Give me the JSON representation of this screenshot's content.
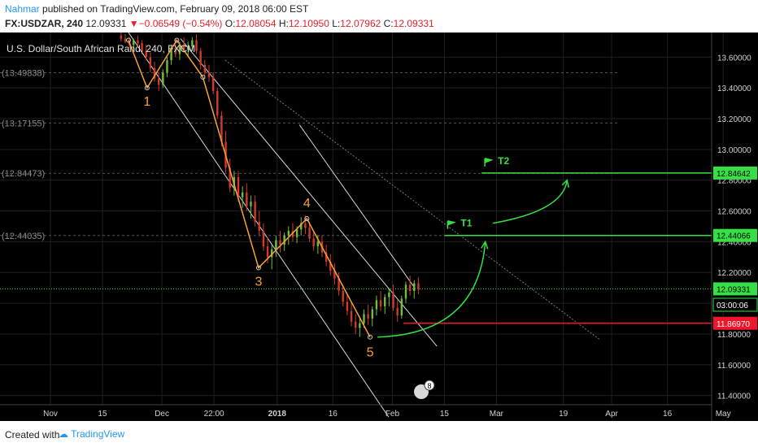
{
  "header": {
    "author": "Nahmar",
    "published_text": " published on TradingView.com, February 09, 2018 06:00 EST",
    "symbol": "FX:USDZAR, 240",
    "last": "12.09331",
    "change": "−0.06549 (−0.54%)",
    "o_label": "O:",
    "o_value": "12.08054",
    "h_label": "H:",
    "h_value": "12.10950",
    "l_label": "L:",
    "l_value": "12.07962",
    "c_label": "C:",
    "c_value": "12.09331"
  },
  "footer": {
    "created_with": "Created with",
    "brand": "TradingView"
  },
  "colors": {
    "background": "#000000",
    "candle_up": "#6fbf3f",
    "candle_down": "#d33a2c",
    "wave": "#f7a13a",
    "target": "#35e045",
    "support": "#f0152a",
    "channel": "#d9d9d9"
  },
  "chart_data": {
    "type": "candlestick",
    "title": "U.S. Dollar/South African Rand, 240, FXCM",
    "xlabel": "",
    "ylabel": "",
    "x_ticks": [
      "Nov",
      "15",
      "Dec",
      "22:00",
      "2018",
      "16",
      "Feb",
      "15",
      "Mar",
      "19",
      "Apr",
      "16",
      "May"
    ],
    "y_ticks": [
      "11.40000",
      "11.60000",
      "11.80000",
      "12.00000",
      "12.20000",
      "12.40000",
      "12.60000",
      "12.80000",
      "13.00000",
      "13.20000",
      "13.40000",
      "13.60000"
    ],
    "ylim": [
      11.34,
      13.76
    ],
    "grid": true,
    "fib_levels": [
      {
        "label": "(13.49838)",
        "value": 13.49838
      },
      {
        "label": "(13.17155)",
        "value": 13.17155
      },
      {
        "label": "(12.84473)",
        "value": 12.84473
      },
      {
        "label": "(12.44035)",
        "value": 12.44035
      }
    ],
    "price_labels": [
      {
        "label": "12.84642",
        "value": 12.84642,
        "color": "#35e045"
      },
      {
        "label": "12.44066",
        "value": 12.44066,
        "color": "#35e045"
      },
      {
        "label": "12.09331",
        "value": 12.09331,
        "color": "#35e045"
      },
      {
        "label": "03:00:06",
        "value": 11.99,
        "color": "#ffffff"
      },
      {
        "label": "11.86970",
        "value": 11.8697,
        "color": "#f0152a"
      }
    ],
    "targets": [
      {
        "label": "T1",
        "value": 12.44066
      },
      {
        "label": "T2",
        "value": 12.84642
      }
    ],
    "support": {
      "label": "",
      "value": 11.8697
    },
    "current_price": 12.09331,
    "waves": [
      {
        "label": "1",
        "date": "2017-11-27",
        "value": 13.4
      },
      {
        "label": "3",
        "date": "2017-12-27",
        "value": 12.23
      },
      {
        "label": "4",
        "date": "2018-01-09",
        "value": 12.55
      },
      {
        "label": "5",
        "date": "2018-01-26",
        "value": 11.78
      }
    ],
    "wave_path": [
      {
        "date": "2017-11-22",
        "value": 13.71
      },
      {
        "date": "2017-11-27",
        "value": 13.4
      },
      {
        "date": "2017-12-05",
        "value": 13.71
      },
      {
        "date": "2017-12-12",
        "value": 13.47
      },
      {
        "date": "2017-12-27",
        "value": 12.23
      },
      {
        "date": "2018-01-09",
        "value": 12.55
      },
      {
        "date": "2018-01-26",
        "value": 11.78
      }
    ],
    "event_badge": "8",
    "ohlc": [
      [
        13.74,
        13.76,
        13.7,
        13.72
      ],
      [
        13.72,
        13.75,
        13.69,
        13.7
      ],
      [
        13.7,
        13.73,
        13.66,
        13.68
      ],
      [
        13.68,
        13.72,
        13.64,
        13.71
      ],
      [
        13.71,
        13.74,
        13.67,
        13.69
      ],
      [
        13.69,
        13.71,
        13.62,
        13.64
      ],
      [
        13.64,
        13.68,
        13.58,
        13.6
      ],
      [
        13.6,
        13.63,
        13.5,
        13.53
      ],
      [
        13.53,
        13.57,
        13.44,
        13.46
      ],
      [
        13.46,
        13.5,
        13.38,
        13.42
      ],
      [
        13.42,
        13.52,
        13.4,
        13.5
      ],
      [
        13.5,
        13.6,
        13.47,
        13.58
      ],
      [
        13.58,
        13.68,
        13.55,
        13.66
      ],
      [
        13.66,
        13.72,
        13.6,
        13.62
      ],
      [
        13.62,
        13.7,
        13.58,
        13.68
      ],
      [
        13.68,
        13.73,
        13.63,
        13.65
      ],
      [
        13.65,
        13.7,
        13.6,
        13.67
      ],
      [
        13.67,
        13.73,
        13.64,
        13.71
      ],
      [
        13.71,
        13.75,
        13.62,
        13.64
      ],
      [
        13.64,
        13.66,
        13.52,
        13.55
      ],
      [
        13.55,
        13.58,
        13.46,
        13.5
      ],
      [
        13.5,
        13.55,
        13.44,
        13.47
      ],
      [
        13.47,
        13.5,
        13.36,
        13.38
      ],
      [
        13.38,
        13.4,
        13.2,
        13.22
      ],
      [
        13.22,
        13.25,
        13.02,
        13.05
      ],
      [
        13.05,
        13.12,
        12.85,
        12.88
      ],
      [
        12.88,
        12.94,
        12.72,
        12.75
      ],
      [
        12.75,
        12.86,
        12.7,
        12.82
      ],
      [
        12.82,
        12.86,
        12.66,
        12.69
      ],
      [
        12.69,
        12.76,
        12.62,
        12.72
      ],
      [
        12.72,
        12.78,
        12.6,
        12.63
      ],
      [
        12.63,
        12.7,
        12.55,
        12.66
      ],
      [
        12.66,
        12.7,
        12.5,
        12.53
      ],
      [
        12.53,
        12.6,
        12.44,
        12.47
      ],
      [
        12.47,
        12.52,
        12.34,
        12.37
      ],
      [
        12.37,
        12.43,
        12.26,
        12.3
      ],
      [
        12.3,
        12.38,
        12.22,
        12.35
      ],
      [
        12.35,
        12.44,
        12.3,
        12.41
      ],
      [
        12.41,
        12.47,
        12.33,
        12.38
      ],
      [
        12.38,
        12.46,
        12.34,
        12.44
      ],
      [
        12.44,
        12.5,
        12.38,
        12.47
      ],
      [
        12.47,
        12.52,
        12.4,
        12.43
      ],
      [
        12.43,
        12.5,
        12.39,
        12.48
      ],
      [
        12.48,
        12.56,
        12.44,
        12.52
      ],
      [
        12.52,
        12.57,
        12.45,
        12.49
      ],
      [
        12.49,
        12.53,
        12.4,
        12.42
      ],
      [
        12.42,
        12.46,
        12.34,
        12.37
      ],
      [
        12.37,
        12.44,
        12.32,
        12.4
      ],
      [
        12.4,
        12.44,
        12.3,
        12.33
      ],
      [
        12.33,
        12.38,
        12.24,
        12.27
      ],
      [
        12.27,
        12.32,
        12.18,
        12.21
      ],
      [
        12.21,
        12.26,
        12.12,
        12.16
      ],
      [
        12.16,
        12.2,
        12.05,
        12.08
      ],
      [
        12.08,
        12.12,
        11.98,
        12.01
      ],
      [
        12.01,
        12.06,
        11.92,
        11.95
      ],
      [
        11.95,
        12.0,
        11.85,
        11.88
      ],
      [
        11.88,
        11.93,
        11.8,
        11.84
      ],
      [
        11.84,
        11.9,
        11.78,
        11.87
      ],
      [
        11.87,
        11.96,
        11.84,
        11.93
      ],
      [
        11.93,
        11.99,
        11.86,
        11.9
      ],
      [
        11.9,
        11.98,
        11.85,
        11.96
      ],
      [
        11.96,
        12.05,
        11.92,
        12.02
      ],
      [
        12.02,
        12.08,
        11.95,
        11.98
      ],
      [
        11.98,
        12.06,
        11.93,
        12.04
      ],
      [
        12.04,
        12.1,
        11.98,
        12.07
      ],
      [
        12.07,
        12.12,
        11.95,
        11.97
      ],
      [
        11.97,
        12.02,
        11.88,
        11.92
      ],
      [
        11.92,
        12.05,
        11.9,
        12.03
      ],
      [
        12.03,
        12.14,
        12.0,
        12.12
      ],
      [
        12.12,
        12.18,
        12.05,
        12.08
      ],
      [
        12.08,
        12.15,
        12.03,
        12.13
      ],
      [
        12.13,
        12.17,
        12.06,
        12.09
      ]
    ]
  }
}
